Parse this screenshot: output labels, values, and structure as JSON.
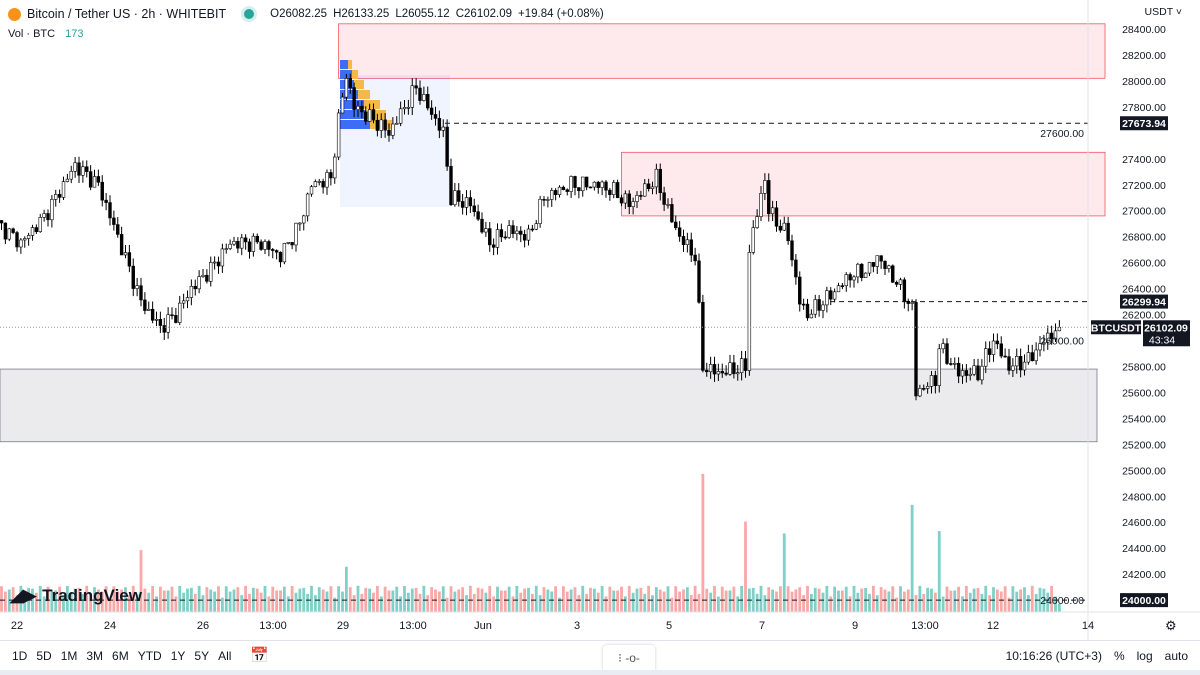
{
  "header": {
    "symbol_title": "Bitcoin / Tether US · 2h · WHITEBIT",
    "open": "O26082.25",
    "high": "H26133.25",
    "low": "L26055.12",
    "close": "C26102.09",
    "change": "+19.84 (+0.08%)",
    "volume_label": "Vol · BTC",
    "volume_value": "173"
  },
  "price_axis": {
    "currency": "USDT ˅",
    "ticks": [
      "28400.00",
      "28200.00",
      "28000.00",
      "27800.00",
      "27600.00",
      "27400.00",
      "27200.00",
      "27000.00",
      "26800.00",
      "26600.00",
      "26400.00",
      "26200.00",
      "26000.00",
      "25800.00",
      "25600.00",
      "25400.00",
      "25200.00",
      "25000.00",
      "24800.00",
      "24600.00",
      "24400.00",
      "24200.00",
      "24000.00"
    ]
  },
  "time_axis": {
    "labels": [
      "22",
      "24",
      "26",
      "13:00",
      "29",
      "13:00",
      "Jun",
      "3",
      "5",
      "7",
      "9",
      "13:00",
      "12",
      "14"
    ]
  },
  "bottom_toolbar": {
    "timeframes": [
      "1D",
      "5D",
      "1M",
      "3M",
      "6M",
      "YTD",
      "1Y",
      "5Y",
      "All"
    ],
    "clock": "10:16:26 (UTC+3)",
    "percent": "%",
    "log": "log",
    "auto": "auto",
    "range_icon": "calendar-range-icon"
  },
  "logo": "TradingView",
  "colors": {
    "up_volume": "#80d0c7",
    "down_volume": "#f7a9a7",
    "resistance_zone": "#f7525f",
    "support_zone": "#787b86",
    "last_price_bg": "#131722"
  },
  "chart_data": {
    "type": "candlestick",
    "symbol": "BTCUSDT",
    "interval": "2h",
    "ylim": [
      24000,
      28400
    ],
    "last_price": {
      "label": "BTCUSDT",
      "value": "26102.09",
      "countdown": "43:34"
    },
    "levels": [
      {
        "value": 27673.94,
        "label": "27673.94"
      },
      {
        "value": 26299.94,
        "label": "26299.94"
      },
      {
        "value": 24000,
        "label": "24000.00"
      }
    ],
    "zones": [
      {
        "type": "resistance",
        "from": 28020,
        "to": 28440,
        "start": "2023-05-28T22:00"
      },
      {
        "type": "resistance",
        "from": 26960,
        "to": 27450,
        "start": "2023-06-04T00:00"
      },
      {
        "type": "support",
        "from": 25220,
        "to": 25780,
        "start": "2023-05-21T14:00"
      }
    ],
    "close_path": [
      [
        "2023-05-21T14:00",
        26900
      ],
      [
        "2023-05-22T02:00",
        26750
      ],
      [
        "2023-05-22T14:00",
        26950
      ],
      [
        "2023-05-23T06:00",
        27350
      ],
      [
        "2023-05-23T18:00",
        27200
      ],
      [
        "2023-05-24T04:00",
        26800
      ],
      [
        "2023-05-24T16:00",
        26300
      ],
      [
        "2023-05-25T02:00",
        26100
      ],
      [
        "2023-05-25T10:00",
        26200
      ],
      [
        "2023-05-25T18:00",
        26400
      ],
      [
        "2023-05-26T04:00",
        26550
      ],
      [
        "2023-05-26T14:00",
        26750
      ],
      [
        "2023-05-27T06:00",
        26750
      ],
      [
        "2023-05-27T16:00",
        26650
      ],
      [
        "2023-05-28T02:00",
        26900
      ],
      [
        "2023-05-28T08:00",
        27200
      ],
      [
        "2023-05-28T18:00",
        27250
      ],
      [
        "2023-05-28T22:00",
        27700
      ],
      [
        "2023-05-29T02:00",
        28050
      ],
      [
        "2023-05-29T06:00",
        27800
      ],
      [
        "2023-05-29T16:00",
        27700
      ],
      [
        "2023-05-30T00:00",
        27600
      ],
      [
        "2023-05-30T14:00",
        27950
      ],
      [
        "2023-05-31T00:00",
        27700
      ],
      [
        "2023-05-31T04:00",
        27600
      ],
      [
        "2023-05-31T08:00",
        27100
      ],
      [
        "2023-05-31T18:00",
        27050
      ],
      [
        "2023-06-01T04:00",
        26750
      ],
      [
        "2023-06-01T14:00",
        26850
      ],
      [
        "2023-06-02T00:00",
        26800
      ],
      [
        "2023-06-02T08:00",
        27100
      ],
      [
        "2023-06-02T22:00",
        27200
      ],
      [
        "2023-06-03T12:00",
        27200
      ],
      [
        "2023-06-03T20:00",
        27150
      ],
      [
        "2023-06-04T04:00",
        27050
      ],
      [
        "2023-06-04T18:00",
        27250
      ],
      [
        "2023-06-05T00:00",
        27000
      ],
      [
        "2023-06-05T06:00",
        26800
      ],
      [
        "2023-06-05T14:00",
        26650
      ],
      [
        "2023-06-05T18:00",
        25800
      ],
      [
        "2023-06-06T02:00",
        25750
      ],
      [
        "2023-06-06T16:00",
        25800
      ],
      [
        "2023-06-06T18:00",
        26700
      ],
      [
        "2023-06-07T02:00",
        27250
      ],
      [
        "2023-06-07T04:00",
        27000
      ],
      [
        "2023-06-07T14:00",
        26800
      ],
      [
        "2023-06-07T20:00",
        26300
      ],
      [
        "2023-06-08T00:00",
        26200
      ],
      [
        "2023-06-08T12:00",
        26350
      ],
      [
        "2023-06-08T22:00",
        26500
      ],
      [
        "2023-06-09T08:00",
        26550
      ],
      [
        "2023-06-09T12:00",
        26650
      ],
      [
        "2023-06-09T22:00",
        26450
      ],
      [
        "2023-06-10T06:00",
        26250
      ],
      [
        "2023-06-10T08:00",
        25600
      ],
      [
        "2023-06-10T18:00",
        25700
      ],
      [
        "2023-06-10T20:00",
        25950
      ],
      [
        "2023-06-11T06:00",
        25750
      ],
      [
        "2023-06-11T16:00",
        25750
      ],
      [
        "2023-06-12T00:00",
        26000
      ],
      [
        "2023-06-12T08:00",
        25800
      ],
      [
        "2023-06-12T18:00",
        25850
      ],
      [
        "2023-06-13T02:00",
        26000
      ],
      [
        "2023-06-13T10:00",
        26102.09
      ]
    ],
    "volume_spikes_btc": [
      [
        "2023-05-24T16:00",
        1300
      ],
      [
        "2023-05-29T02:00",
        950
      ],
      [
        "2023-06-05T18:00",
        2900
      ],
      [
        "2023-06-06T16:00",
        1900
      ],
      [
        "2023-06-07T12:00",
        1650
      ],
      [
        "2023-06-10T06:00",
        2250
      ],
      [
        "2023-06-10T20:00",
        1700
      ],
      [
        "2023-06-13T10:00",
        173
      ]
    ]
  }
}
